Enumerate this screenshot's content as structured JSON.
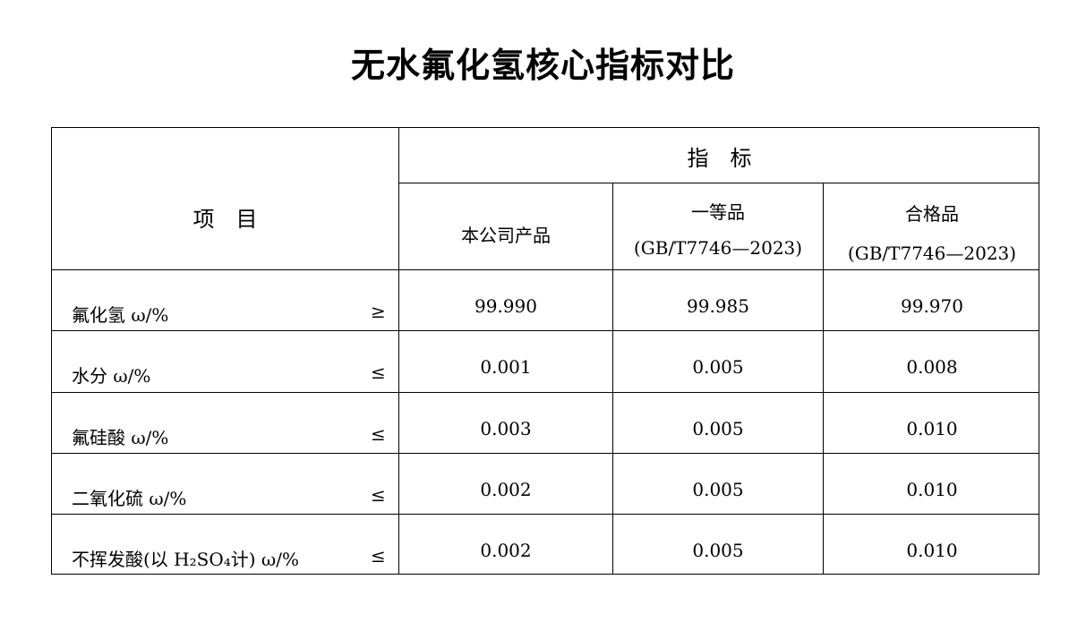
{
  "title": "无水氟化氢核心指标对比",
  "header": {
    "item": "项　目",
    "indicator": "指　标",
    "columns": [
      {
        "name": "本公司产品",
        "standard": ""
      },
      {
        "name": "一等品",
        "standard": "(GB/T7746—2023)"
      },
      {
        "name": "合格品",
        "standard": "(GB/T7746—2023)"
      }
    ]
  },
  "rows": [
    {
      "label": "氟化氢 ω/%",
      "cmp": "≥",
      "values": [
        "99.990",
        "99.985",
        "99.970"
      ]
    },
    {
      "label": "水分 ω/%",
      "cmp": "≤",
      "values": [
        "0.001",
        "0.005",
        "0.008"
      ]
    },
    {
      "label": "氟硅酸 ω/%",
      "cmp": "≤",
      "values": [
        "0.003",
        "0.005",
        "0.010"
      ]
    },
    {
      "label": "二氧化硫 ω/%",
      "cmp": "≤",
      "values": [
        "0.002",
        "0.005",
        "0.010"
      ]
    },
    {
      "label": "不挥发酸(以 H₂SO₄计) ω/%",
      "cmp": "≤",
      "values": [
        "0.002",
        "0.005",
        "0.010"
      ]
    }
  ]
}
